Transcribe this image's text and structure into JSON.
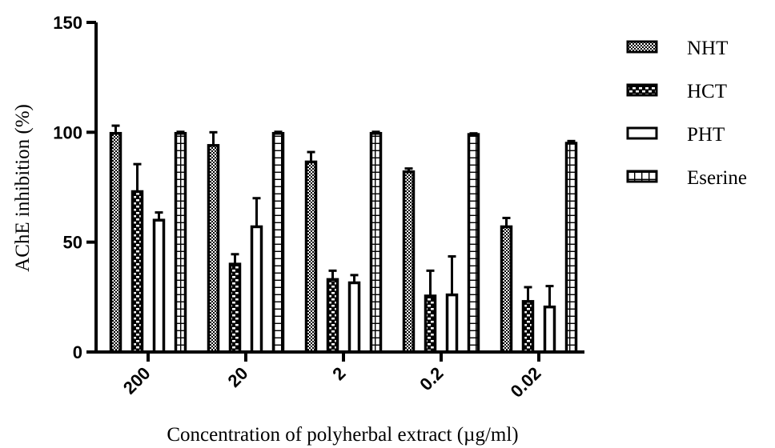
{
  "chart_data": {
    "type": "bar",
    "title": "",
    "xlabel": "Concentration of polyherbal extract (µg/ml)",
    "ylabel": "AChE inhibition (%)",
    "ylim": [
      0,
      150
    ],
    "yticks": [
      0,
      50,
      100,
      150
    ],
    "categories": [
      "200",
      "20",
      "2",
      "0.2",
      "0.02"
    ],
    "legend_position": "right",
    "series": [
      {
        "name": "NHT",
        "pattern": "checker",
        "values": [
          99.5,
          94,
          86.5,
          82,
          57
        ],
        "errors": [
          3.5,
          6,
          4.5,
          1.5,
          4
        ]
      },
      {
        "name": "HCT",
        "pattern": "brick",
        "values": [
          73,
          40,
          33,
          25.5,
          23
        ],
        "errors": [
          12.5,
          4.5,
          4,
          11.5,
          6.5
        ]
      },
      {
        "name": "PHT",
        "pattern": "hollow",
        "values": [
          60,
          57,
          31.5,
          26,
          20.5
        ],
        "errors": [
          3.5,
          13,
          3.5,
          17.5,
          9.5
        ]
      },
      {
        "name": "Eserine",
        "pattern": "grid",
        "values": [
          99.5,
          99.5,
          99.5,
          99,
          95
        ],
        "errors": [
          0.7,
          0.7,
          0.7,
          0.5,
          1
        ]
      }
    ]
  }
}
